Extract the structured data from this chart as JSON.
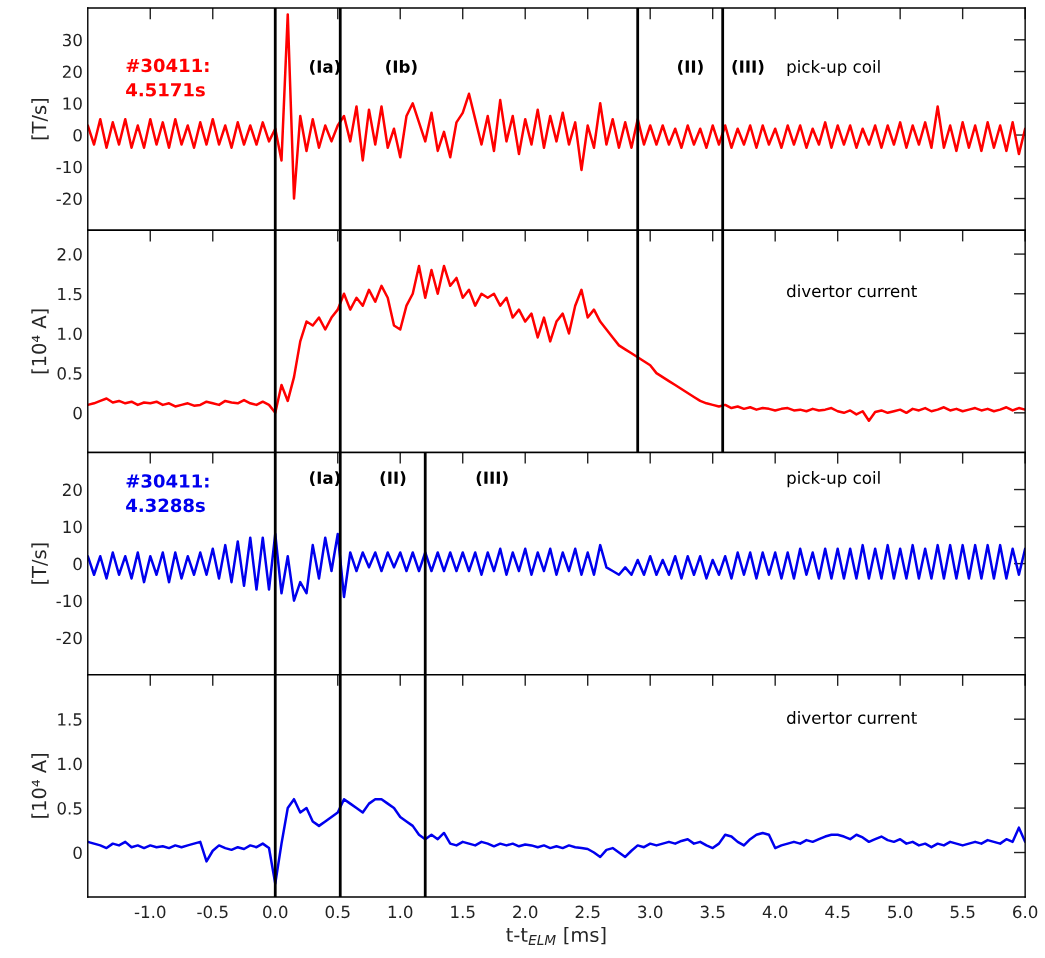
{
  "chart_data": [
    {
      "type": "line",
      "ylabel": "[T/s]",
      "tick_labels": "y",
      "xlim": [
        -1.5,
        6.0
      ],
      "xticks": [
        {
          "value": -1.0,
          "label": null
        },
        {
          "value": -0.5,
          "label": null
        },
        {
          "value": 0.0,
          "label": null
        },
        {
          "value": 0.5,
          "label": null
        },
        {
          "value": 1.0,
          "label": null
        },
        {
          "value": 1.5,
          "label": null
        },
        {
          "value": 2.0,
          "label": null
        },
        {
          "value": 2.5,
          "label": null
        },
        {
          "value": 3.0,
          "label": null
        },
        {
          "value": 3.5,
          "label": null
        },
        {
          "value": 4.0,
          "label": null
        },
        {
          "value": 4.5,
          "label": null
        },
        {
          "value": 5.0,
          "label": null
        },
        {
          "value": 5.5,
          "label": null
        },
        {
          "value": 6.0,
          "label": null
        }
      ],
      "ylim": [
        -30,
        40
      ],
      "yticks": [
        {
          "value": -20,
          "label": "-20"
        },
        {
          "value": -10,
          "label": "-10"
        },
        0,
        10,
        20,
        30
      ],
      "x": [
        -1.5,
        -1.45,
        -1.4,
        -1.35,
        -1.3,
        -1.25,
        -1.2,
        -1.15,
        -1.1,
        -1.05,
        -1.0,
        -0.95,
        -0.9,
        -0.85,
        -0.8,
        -0.75,
        -0.7,
        -0.65,
        -0.6,
        -0.55,
        -0.5,
        -0.45,
        -0.4,
        -0.35,
        -0.3,
        -0.25,
        -0.2,
        -0.15,
        -0.1,
        -0.05,
        0.0,
        0.05,
        0.1,
        0.15,
        0.2,
        0.25,
        0.3,
        0.35,
        0.4,
        0.45,
        0.5,
        0.55,
        0.6,
        0.65,
        0.7,
        0.75,
        0.8,
        0.85,
        0.9,
        0.95,
        1.0,
        1.05,
        1.1,
        1.15,
        1.2,
        1.25,
        1.3,
        1.35,
        1.4,
        1.45,
        1.5,
        1.55,
        1.6,
        1.65,
        1.7,
        1.75,
        1.8,
        1.85,
        1.9,
        1.95,
        2.0,
        2.05,
        2.1,
        2.15,
        2.2,
        2.25,
        2.3,
        2.35,
        2.4,
        2.45,
        2.5,
        2.55,
        2.6,
        2.65,
        2.7,
        2.75,
        2.8,
        2.85,
        2.9,
        2.95,
        3.0,
        3.05,
        3.1,
        3.15,
        3.2,
        3.25,
        3.3,
        3.35,
        3.4,
        3.45,
        3.5,
        3.55,
        3.6,
        3.65,
        3.7,
        3.75,
        3.8,
        3.85,
        3.9,
        3.95,
        4.0,
        4.05,
        4.1,
        4.15,
        4.2,
        4.25,
        4.3,
        4.35,
        4.4,
        4.45,
        4.5,
        4.55,
        4.6,
        4.65,
        4.7,
        4.75,
        4.8,
        4.85,
        4.9,
        4.95,
        5.0,
        5.05,
        5.1,
        5.15,
        5.2,
        5.25,
        5.3,
        5.35,
        5.4,
        5.45,
        5.5,
        5.55,
        5.6,
        5.65,
        5.7,
        5.75,
        5.8,
        5.85,
        5.9,
        5.95,
        6.0
      ],
      "series": [
        {
          "color": "#ff0000",
          "values": [
            3,
            -3,
            5,
            -4,
            4,
            -3,
            5,
            -4,
            3,
            -4,
            5,
            -3,
            4,
            -4,
            5,
            -3,
            3,
            -4,
            4,
            -3,
            5,
            -3,
            3,
            -4,
            4,
            -3,
            3,
            -3,
            4,
            -2,
            2,
            -8,
            38,
            -20,
            6,
            -5,
            5,
            -4,
            3,
            -2,
            3,
            6,
            -2,
            9,
            -8,
            8,
            -3,
            9,
            -4,
            2,
            -7,
            6,
            10,
            4,
            -2,
            7,
            -5,
            1,
            -7,
            4,
            7,
            13,
            5,
            -3,
            6,
            -5,
            11,
            -2,
            6,
            -6,
            5,
            -3,
            8,
            -4,
            6,
            -2,
            7,
            -3,
            4,
            -11,
            3,
            -4,
            10,
            -3,
            5,
            -4,
            4,
            -4,
            5,
            -3,
            3,
            -3,
            3,
            -3,
            2,
            -4,
            3,
            -3,
            2,
            -4,
            3,
            -3,
            3,
            -4,
            2,
            -3,
            3,
            -4,
            3,
            -3,
            2,
            -4,
            3,
            -3,
            3,
            -4,
            2,
            -3,
            4,
            -4,
            3,
            -3,
            3,
            -4,
            2,
            -3,
            3,
            -4,
            3,
            -3,
            4,
            -4,
            3,
            -3,
            4,
            -4,
            9,
            -4,
            3,
            -5,
            4,
            -4,
            3,
            -5,
            4,
            -4,
            3,
            -5,
            4,
            -6,
            2
          ]
        }
      ],
      "ref_lines": [
        {
          "axis": "x",
          "value": 0.0,
          "color": "#000000"
        },
        {
          "axis": "x",
          "value": 0.52,
          "color": "#000000"
        },
        {
          "axis": "x",
          "value": 2.9,
          "color": "#000000"
        },
        {
          "axis": "x",
          "value": 3.58,
          "color": "#000000"
        }
      ],
      "annotations": [
        "#30411:\n4.5171s",
        "(Ia)",
        "(Ib)",
        "(II)",
        "(III)",
        "pick-up coil"
      ]
    },
    {
      "type": "line",
      "ylabel": "[10⁴ A]",
      "tick_labels": "y",
      "xlim": [
        -1.5,
        6.0
      ],
      "xticks": [
        {
          "value": -1.0,
          "label": null
        },
        {
          "value": -0.5,
          "label": null
        },
        {
          "value": 0.0,
          "label": null
        },
        {
          "value": 0.5,
          "label": null
        },
        {
          "value": 1.0,
          "label": null
        },
        {
          "value": 1.5,
          "label": null
        },
        {
          "value": 2.0,
          "label": null
        },
        {
          "value": 2.5,
          "label": null
        },
        {
          "value": 3.0,
          "label": null
        },
        {
          "value": 3.5,
          "label": null
        },
        {
          "value": 4.0,
          "label": null
        },
        {
          "value": 4.5,
          "label": null
        },
        {
          "value": 5.0,
          "label": null
        },
        {
          "value": 5.5,
          "label": null
        },
        {
          "value": 6.0,
          "label": null
        }
      ],
      "ylim": [
        -0.5,
        2.3
      ],
      "yticks": [
        0,
        0.5,
        {
          "value": 1.0,
          "label": "1.0"
        },
        1.5,
        {
          "value": 2.0,
          "label": "2.0"
        }
      ],
      "x": [
        -1.5,
        -1.45,
        -1.4,
        -1.35,
        -1.3,
        -1.25,
        -1.2,
        -1.15,
        -1.1,
        -1.05,
        -1.0,
        -0.95,
        -0.9,
        -0.85,
        -0.8,
        -0.75,
        -0.7,
        -0.65,
        -0.6,
        -0.55,
        -0.5,
        -0.45,
        -0.4,
        -0.35,
        -0.3,
        -0.25,
        -0.2,
        -0.15,
        -0.1,
        -0.05,
        0.0,
        0.05,
        0.1,
        0.15,
        0.2,
        0.25,
        0.3,
        0.35,
        0.4,
        0.45,
        0.5,
        0.55,
        0.6,
        0.65,
        0.7,
        0.75,
        0.8,
        0.85,
        0.9,
        0.95,
        1.0,
        1.05,
        1.1,
        1.15,
        1.2,
        1.25,
        1.3,
        1.35,
        1.4,
        1.45,
        1.5,
        1.55,
        1.6,
        1.65,
        1.7,
        1.75,
        1.8,
        1.85,
        1.9,
        1.95,
        2.0,
        2.05,
        2.1,
        2.15,
        2.2,
        2.25,
        2.3,
        2.35,
        2.4,
        2.45,
        2.5,
        2.55,
        2.6,
        2.65,
        2.7,
        2.75,
        2.8,
        2.85,
        2.9,
        2.95,
        3.0,
        3.05,
        3.1,
        3.15,
        3.2,
        3.25,
        3.3,
        3.35,
        3.4,
        3.45,
        3.5,
        3.55,
        3.6,
        3.65,
        3.7,
        3.75,
        3.8,
        3.85,
        3.9,
        3.95,
        4.0,
        4.05,
        4.1,
        4.15,
        4.2,
        4.25,
        4.3,
        4.35,
        4.4,
        4.45,
        4.5,
        4.55,
        4.6,
        4.65,
        4.7,
        4.75,
        4.8,
        4.85,
        4.9,
        4.95,
        5.0,
        5.05,
        5.1,
        5.15,
        5.2,
        5.25,
        5.3,
        5.35,
        5.4,
        5.45,
        5.5,
        5.55,
        5.6,
        5.65,
        5.7,
        5.75,
        5.8,
        5.85,
        5.9,
        5.95,
        6.0
      ],
      "series": [
        {
          "color": "#ff0000",
          "values": [
            0.1,
            0.12,
            0.15,
            0.18,
            0.13,
            0.15,
            0.12,
            0.14,
            0.1,
            0.13,
            0.12,
            0.14,
            0.1,
            0.12,
            0.08,
            0.1,
            0.12,
            0.09,
            0.1,
            0.14,
            0.12,
            0.1,
            0.15,
            0.13,
            0.12,
            0.16,
            0.12,
            0.1,
            0.14,
            0.1,
            0.0,
            0.35,
            0.15,
            0.45,
            0.9,
            1.15,
            1.1,
            1.2,
            1.05,
            1.2,
            1.3,
            1.5,
            1.3,
            1.45,
            1.35,
            1.55,
            1.4,
            1.6,
            1.45,
            1.1,
            1.05,
            1.35,
            1.5,
            1.85,
            1.45,
            1.8,
            1.5,
            1.85,
            1.6,
            1.7,
            1.45,
            1.55,
            1.35,
            1.5,
            1.45,
            1.5,
            1.35,
            1.45,
            1.2,
            1.3,
            1.15,
            1.25,
            0.95,
            1.2,
            0.9,
            1.15,
            1.25,
            1.0,
            1.35,
            1.55,
            1.2,
            1.3,
            1.15,
            1.05,
            0.95,
            0.85,
            0.8,
            0.75,
            0.7,
            0.65,
            0.6,
            0.5,
            0.45,
            0.4,
            0.35,
            0.3,
            0.25,
            0.2,
            0.15,
            0.12,
            0.1,
            0.08,
            0.1,
            0.06,
            0.08,
            0.05,
            0.07,
            0.04,
            0.06,
            0.05,
            0.03,
            0.05,
            0.06,
            0.03,
            0.04,
            0.02,
            0.05,
            0.03,
            0.04,
            0.06,
            0.02,
            0.0,
            0.03,
            -0.02,
            0.02,
            -0.1,
            0.01,
            0.03,
            0.0,
            0.02,
            0.04,
            0.0,
            0.05,
            0.03,
            0.06,
            0.02,
            0.04,
            0.07,
            0.03,
            0.05,
            0.02,
            0.04,
            0.06,
            0.03,
            0.05,
            0.02,
            0.04,
            0.07,
            0.03,
            0.06,
            0.04
          ]
        }
      ],
      "ref_lines": [
        {
          "axis": "x",
          "value": 0.0,
          "color": "#000000"
        },
        {
          "axis": "x",
          "value": 0.52,
          "color": "#000000"
        },
        {
          "axis": "x",
          "value": 2.9,
          "color": "#000000"
        },
        {
          "axis": "x",
          "value": 3.58,
          "color": "#000000"
        }
      ],
      "annotations": [
        "divertor current"
      ]
    },
    {
      "type": "line",
      "ylabel": "[T/s]",
      "tick_labels": "y",
      "xlim": [
        -1.5,
        6.0
      ],
      "xticks": [
        {
          "value": -1.0,
          "label": null
        },
        {
          "value": -0.5,
          "label": null
        },
        {
          "value": 0.0,
          "label": null
        },
        {
          "value": 0.5,
          "label": null
        },
        {
          "value": 1.0,
          "label": null
        },
        {
          "value": 1.5,
          "label": null
        },
        {
          "value": 2.0,
          "label": null
        },
        {
          "value": 2.5,
          "label": null
        },
        {
          "value": 3.0,
          "label": null
        },
        {
          "value": 3.5,
          "label": null
        },
        {
          "value": 4.0,
          "label": null
        },
        {
          "value": 4.5,
          "label": null
        },
        {
          "value": 5.0,
          "label": null
        },
        {
          "value": 5.5,
          "label": null
        },
        {
          "value": 6.0,
          "label": null
        }
      ],
      "ylim": [
        -30,
        30
      ],
      "yticks": [
        {
          "value": -20,
          "label": "-20"
        },
        {
          "value": -10,
          "label": "-10"
        },
        0,
        10,
        20
      ],
      "x": [
        -1.5,
        -1.45,
        -1.4,
        -1.35,
        -1.3,
        -1.25,
        -1.2,
        -1.15,
        -1.1,
        -1.05,
        -1.0,
        -0.95,
        -0.9,
        -0.85,
        -0.8,
        -0.75,
        -0.7,
        -0.65,
        -0.6,
        -0.55,
        -0.5,
        -0.45,
        -0.4,
        -0.35,
        -0.3,
        -0.25,
        -0.2,
        -0.15,
        -0.1,
        -0.05,
        0.0,
        0.05,
        0.1,
        0.15,
        0.2,
        0.25,
        0.3,
        0.35,
        0.4,
        0.45,
        0.5,
        0.55,
        0.6,
        0.65,
        0.7,
        0.75,
        0.8,
        0.85,
        0.9,
        0.95,
        1.0,
        1.05,
        1.1,
        1.15,
        1.2,
        1.25,
        1.3,
        1.35,
        1.4,
        1.45,
        1.5,
        1.55,
        1.6,
        1.65,
        1.7,
        1.75,
        1.8,
        1.85,
        1.9,
        1.95,
        2.0,
        2.05,
        2.1,
        2.15,
        2.2,
        2.25,
        2.3,
        2.35,
        2.4,
        2.45,
        2.5,
        2.55,
        2.6,
        2.65,
        2.7,
        2.75,
        2.8,
        2.85,
        2.9,
        2.95,
        3.0,
        3.05,
        3.1,
        3.15,
        3.2,
        3.25,
        3.3,
        3.35,
        3.4,
        3.45,
        3.5,
        3.55,
        3.6,
        3.65,
        3.7,
        3.75,
        3.8,
        3.85,
        3.9,
        3.95,
        4.0,
        4.05,
        4.1,
        4.15,
        4.2,
        4.25,
        4.3,
        4.35,
        4.4,
        4.45,
        4.5,
        4.55,
        4.6,
        4.65,
        4.7,
        4.75,
        4.8,
        4.85,
        4.9,
        4.95,
        5.0,
        5.05,
        5.1,
        5.15,
        5.2,
        5.25,
        5.3,
        5.35,
        5.4,
        5.45,
        5.5,
        5.55,
        5.6,
        5.65,
        5.7,
        5.75,
        5.8,
        5.85,
        5.9,
        5.95,
        6.0
      ],
      "series": [
        {
          "color": "#0000ee",
          "values": [
            2,
            -3,
            2,
            -4,
            3,
            -3,
            2,
            -4,
            3,
            -5,
            2,
            -3,
            3,
            -5,
            3,
            -4,
            2,
            -3,
            3,
            -3,
            4,
            -4,
            5,
            -5,
            6,
            -6,
            7,
            -7,
            7,
            -7,
            8,
            -8,
            2,
            -10,
            -5,
            -8,
            5,
            -4,
            7,
            -2,
            8,
            -9,
            3,
            -2,
            3,
            -1,
            3,
            -2,
            3,
            -1,
            3,
            -2,
            3,
            -2,
            3,
            -2,
            3,
            -2,
            3,
            -2,
            3,
            -2,
            3,
            -3,
            3,
            -2,
            4,
            -3,
            3,
            -2,
            4,
            -3,
            3,
            -2,
            4,
            -3,
            3,
            -2,
            4,
            -3,
            3,
            -3,
            5,
            -1,
            -2,
            -3,
            -1,
            -3,
            1,
            -3,
            2,
            -3,
            1,
            -3,
            2,
            -4,
            2,
            -3,
            2,
            -4,
            1,
            -3,
            2,
            -4,
            3,
            -3,
            3,
            -4,
            3,
            -3,
            3,
            -4,
            3,
            -4,
            4,
            -3,
            3,
            -4,
            4,
            -4,
            4,
            -4,
            4,
            -4,
            5,
            -4,
            4,
            -4,
            5,
            -4,
            4,
            -4,
            5,
            -4,
            4,
            -4,
            5,
            -4,
            5,
            -4,
            5,
            -4,
            5,
            -4,
            5,
            -4,
            5,
            -4,
            4,
            -3,
            4
          ]
        }
      ],
      "ref_lines": [
        {
          "axis": "x",
          "value": 0.0,
          "color": "#000000"
        },
        {
          "axis": "x",
          "value": 0.52,
          "color": "#000000"
        },
        {
          "axis": "x",
          "value": 1.2,
          "color": "#000000"
        }
      ],
      "annotations": [
        "#30411:\n4.3288s",
        "(Ia)",
        "(II)",
        "(III)",
        "pick-up coil"
      ]
    },
    {
      "type": "line",
      "ylabel": "[10⁴ A]",
      "xlabel": "t-t$_{ELM}$ [ms]",
      "xlim": [
        -1.5,
        6.0
      ],
      "xticks": [
        {
          "value": -1.0,
          "label": "-1.0"
        },
        {
          "value": -0.5,
          "label": "-0.5"
        },
        {
          "value": 0.0,
          "label": "0.0"
        },
        {
          "value": 0.5,
          "label": "0.5"
        },
        {
          "value": 1.0,
          "label": "1.0"
        },
        {
          "value": 1.5,
          "label": "1.5"
        },
        {
          "value": 2.0,
          "label": "2.0"
        },
        {
          "value": 2.5,
          "label": "2.5"
        },
        {
          "value": 3.0,
          "label": "3.0"
        },
        {
          "value": 3.5,
          "label": "3.5"
        },
        {
          "value": 4.0,
          "label": "4.0"
        },
        {
          "value": 4.5,
          "label": "4.5"
        },
        {
          "value": 5.0,
          "label": "5.0"
        },
        {
          "value": 5.5,
          "label": "5.5"
        },
        {
          "value": 6.0,
          "label": "6.0"
        }
      ],
      "ylim": [
        -0.5,
        2.0
      ],
      "yticks": [
        0,
        0.5,
        {
          "value": 1.0,
          "label": "1.0"
        },
        1.5
      ],
      "x": [
        -1.5,
        -1.45,
        -1.4,
        -1.35,
        -1.3,
        -1.25,
        -1.2,
        -1.15,
        -1.1,
        -1.05,
        -1.0,
        -0.95,
        -0.9,
        -0.85,
        -0.8,
        -0.75,
        -0.7,
        -0.65,
        -0.6,
        -0.55,
        -0.5,
        -0.45,
        -0.4,
        -0.35,
        -0.3,
        -0.25,
        -0.2,
        -0.15,
        -0.1,
        -0.05,
        0.0,
        0.05,
        0.1,
        0.15,
        0.2,
        0.25,
        0.3,
        0.35,
        0.4,
        0.45,
        0.5,
        0.55,
        0.6,
        0.65,
        0.7,
        0.75,
        0.8,
        0.85,
        0.9,
        0.95,
        1.0,
        1.05,
        1.1,
        1.15,
        1.2,
        1.25,
        1.3,
        1.35,
        1.4,
        1.45,
        1.5,
        1.55,
        1.6,
        1.65,
        1.7,
        1.75,
        1.8,
        1.85,
        1.9,
        1.95,
        2.0,
        2.05,
        2.1,
        2.15,
        2.2,
        2.25,
        2.3,
        2.35,
        2.4,
        2.45,
        2.5,
        2.55,
        2.6,
        2.65,
        2.7,
        2.75,
        2.8,
        2.85,
        2.9,
        2.95,
        3.0,
        3.05,
        3.1,
        3.15,
        3.2,
        3.25,
        3.3,
        3.35,
        3.4,
        3.45,
        3.5,
        3.55,
        3.6,
        3.65,
        3.7,
        3.75,
        3.8,
        3.85,
        3.9,
        3.95,
        4.0,
        4.05,
        4.1,
        4.15,
        4.2,
        4.25,
        4.3,
        4.35,
        4.4,
        4.45,
        4.5,
        4.55,
        4.6,
        4.65,
        4.7,
        4.75,
        4.8,
        4.85,
        4.9,
        4.95,
        5.0,
        5.05,
        5.1,
        5.15,
        5.2,
        5.25,
        5.3,
        5.35,
        5.4,
        5.45,
        5.5,
        5.55,
        5.6,
        5.65,
        5.7,
        5.75,
        5.8,
        5.85,
        5.9,
        5.95,
        6.0
      ],
      "series": [
        {
          "color": "#0000ee",
          "values": [
            0.12,
            0.1,
            0.08,
            0.05,
            0.1,
            0.08,
            0.12,
            0.06,
            0.08,
            0.05,
            0.08,
            0.06,
            0.07,
            0.05,
            0.08,
            0.06,
            0.08,
            0.1,
            0.12,
            -0.1,
            0.02,
            0.08,
            0.05,
            0.03,
            0.06,
            0.04,
            0.08,
            0.06,
            0.1,
            0.05,
            -0.35,
            0.1,
            0.5,
            0.6,
            0.45,
            0.5,
            0.35,
            0.3,
            0.35,
            0.4,
            0.45,
            0.6,
            0.55,
            0.5,
            0.45,
            0.55,
            0.6,
            0.6,
            0.55,
            0.5,
            0.4,
            0.35,
            0.3,
            0.2,
            0.15,
            0.2,
            0.15,
            0.22,
            0.1,
            0.08,
            0.12,
            0.1,
            0.08,
            0.12,
            0.1,
            0.07,
            0.1,
            0.08,
            0.1,
            0.07,
            0.09,
            0.08,
            0.06,
            0.08,
            0.05,
            0.07,
            0.05,
            0.08,
            0.06,
            0.05,
            0.04,
            0.0,
            -0.05,
            0.03,
            0.05,
            0.0,
            -0.05,
            0.02,
            0.08,
            0.06,
            0.1,
            0.08,
            0.1,
            0.12,
            0.1,
            0.13,
            0.15,
            0.1,
            0.12,
            0.08,
            0.05,
            0.1,
            0.2,
            0.18,
            0.12,
            0.08,
            0.15,
            0.2,
            0.22,
            0.2,
            0.05,
            0.08,
            0.1,
            0.12,
            0.1,
            0.14,
            0.12,
            0.15,
            0.18,
            0.2,
            0.2,
            0.18,
            0.15,
            0.2,
            0.17,
            0.12,
            0.15,
            0.18,
            0.14,
            0.12,
            0.15,
            0.1,
            0.12,
            0.08,
            0.1,
            0.06,
            0.1,
            0.08,
            0.12,
            0.1,
            0.08,
            0.1,
            0.12,
            0.1,
            0.14,
            0.12,
            0.1,
            0.15,
            0.12,
            0.28,
            0.12
          ]
        }
      ],
      "ref_lines": [
        {
          "axis": "x",
          "value": 0.0,
          "color": "#000000"
        },
        {
          "axis": "x",
          "value": 0.52,
          "color": "#000000"
        },
        {
          "axis": "x",
          "value": 1.2,
          "color": "#000000"
        }
      ],
      "annotations": [
        "divertor current"
      ]
    }
  ]
}
